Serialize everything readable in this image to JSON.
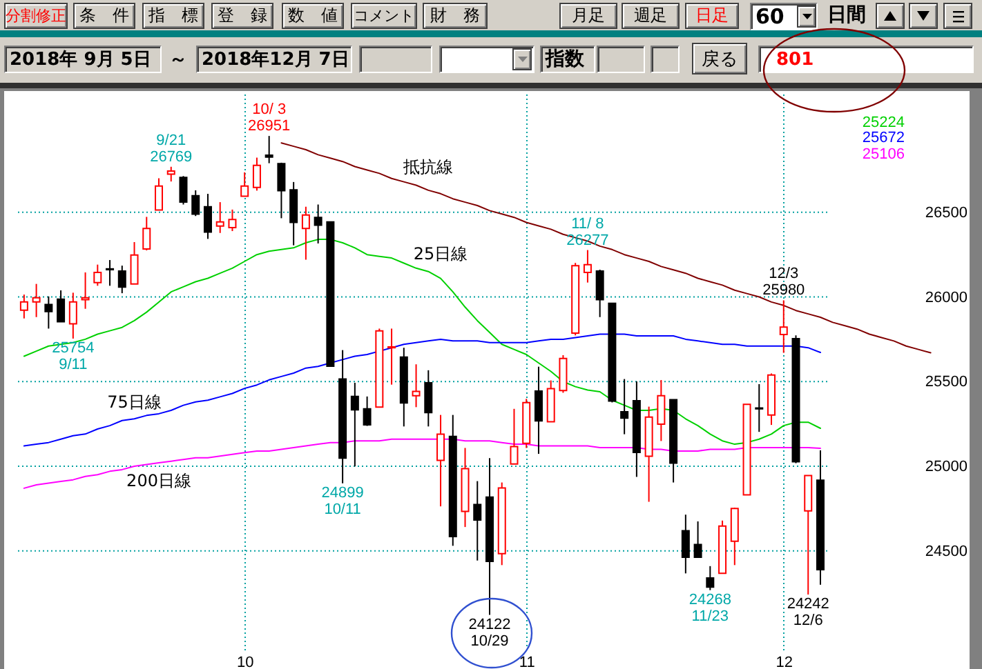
{
  "chart_data": {
    "type": "candlestick",
    "categories": [
      null,
      null,
      null,
      null,
      null,
      null,
      null,
      null,
      null,
      null,
      null,
      null,
      null,
      null,
      null,
      null,
      null,
      null,
      "10",
      null,
      null,
      null,
      null,
      null,
      null,
      null,
      null,
      null,
      null,
      null,
      null,
      null,
      null,
      null,
      null,
      null,
      null,
      null,
      null,
      null,
      null,
      "11",
      null,
      null,
      null,
      null,
      null,
      null,
      null,
      null,
      null,
      null,
      null,
      null,
      null,
      null,
      null,
      null,
      null,
      null,
      null,
      null,
      "12",
      null,
      null,
      null,
      null,
      null,
      null,
      null,
      null,
      null,
      null,
      null,
      null,
      null,
      null
    ],
    "ohlc": [
      [
        25922,
        26014,
        25873,
        25971
      ],
      [
        25971,
        26077,
        25881,
        25995
      ],
      [
        25955,
        26003,
        25813,
        25914
      ],
      [
        25987,
        26039,
        25854,
        25854
      ],
      [
        25841,
        26025,
        25754,
        25971
      ],
      [
        25984,
        26145,
        25930,
        25995
      ],
      [
        26085,
        26191,
        26066,
        26145
      ],
      [
        26166,
        26218,
        26066,
        26161
      ],
      [
        26153,
        26185,
        26022,
        26058
      ],
      [
        26077,
        26324,
        26077,
        26248
      ],
      [
        26283,
        26473,
        26275,
        26405
      ],
      [
        26514,
        26701,
        26514,
        26655
      ],
      [
        26725,
        26769,
        26682,
        26744
      ],
      [
        26706,
        26714,
        26546,
        26560
      ],
      [
        26598,
        26630,
        26478,
        26489
      ],
      [
        26533,
        26609,
        26343,
        26383
      ],
      [
        26419,
        26560,
        26378,
        26443
      ],
      [
        26410,
        26516,
        26389,
        26457
      ],
      [
        26595,
        26736,
        26595,
        26655
      ],
      [
        26647,
        26823,
        26628,
        26777
      ],
      [
        26837,
        26951,
        26790,
        26826
      ],
      [
        26788,
        26793,
        26465,
        26628
      ],
      [
        26633,
        26679,
        26305,
        26440
      ],
      [
        26405,
        26533,
        26220,
        26484
      ],
      [
        26470,
        26546,
        26316,
        26424
      ],
      [
        26443,
        26443,
        25591,
        25591
      ],
      [
        25515,
        25686,
        24899,
        25048
      ],
      [
        25412,
        25493,
        24999,
        25333
      ],
      [
        25339,
        25412,
        25238,
        25244
      ],
      [
        25349,
        25813,
        25349,
        25800
      ],
      [
        25700,
        25813,
        25482,
        25705
      ],
      [
        25645,
        25700,
        25235,
        25374
      ],
      [
        25417,
        25602,
        25349,
        25442
      ],
      [
        25493,
        25567,
        25235,
        25317
      ],
      [
        25035,
        25303,
        24763,
        25189
      ],
      [
        25176,
        25303,
        24530,
        24584
      ],
      [
        24733,
        25108,
        24641,
        24986
      ],
      [
        24774,
        24912,
        24443,
        24682
      ],
      [
        24818,
        25048,
        24122,
        24438
      ],
      [
        24484,
        24904,
        24416,
        24872
      ],
      [
        25013,
        25339,
        25013,
        25116
      ],
      [
        25135,
        25398,
        25108,
        25376
      ],
      [
        25444,
        25588,
        25073,
        25268
      ],
      [
        25263,
        25507,
        25263,
        25458
      ],
      [
        25447,
        25656,
        25434,
        25637
      ],
      [
        25786,
        26201,
        25773,
        26185
      ],
      [
        26145,
        26277,
        26085,
        26191
      ],
      [
        26153,
        26161,
        25881,
        25984
      ],
      [
        25963,
        25963,
        25377,
        25385
      ],
      [
        25322,
        25515,
        25189,
        25284
      ],
      [
        25387,
        25501,
        24937,
        25081
      ],
      [
        25059,
        25352,
        24790,
        25290
      ],
      [
        25249,
        25509,
        25149,
        25417
      ],
      [
        25393,
        25393,
        24904,
        25018
      ],
      [
        24619,
        24714,
        24367,
        24462
      ],
      [
        24538,
        24674,
        24462,
        24462
      ],
      [
        24340,
        24410,
        24268,
        24286
      ],
      [
        24367,
        24679,
        24367,
        24647
      ],
      [
        24557,
        24755,
        24416,
        24750
      ],
      [
        24831,
        25366,
        24831,
        25366
      ],
      [
        25344,
        25485,
        25203,
        25339
      ],
      [
        25303,
        25548,
        25244,
        25539
      ],
      [
        25778,
        25980,
        25670,
        25822
      ],
      [
        25754,
        25773,
        25018,
        25026
      ],
      [
        24736,
        24945,
        24242,
        24945
      ],
      [
        24918,
        25094,
        24300,
        24389
      ],
      null,
      null,
      null,
      null,
      null,
      null,
      null,
      null,
      null,
      null,
      null
    ],
    "colors": [
      "#ff0000",
      "#ff0000",
      "#000000",
      "#000000",
      "#ff0000",
      "#ff0000",
      "#ff0000",
      "#000000",
      "#000000",
      "#ff0000",
      "#ff0000",
      "#ff0000",
      "#ff0000",
      "#000000",
      "#000000",
      "#000000",
      "#ff0000",
      "#ff0000",
      "#ff0000",
      "#ff0000",
      "#000000",
      "#000000",
      "#000000",
      "#ff0000",
      "#000000",
      "#000000",
      "#000000",
      "#000000",
      "#000000",
      "#ff0000",
      "#ff0000",
      "#000000",
      "#ff0000",
      "#000000",
      "#ff0000",
      "#000000",
      "#ff0000",
      "#000000",
      "#000000",
      "#ff0000",
      "#ff0000",
      "#ff0000",
      "#000000",
      "#ff0000",
      "#ff0000",
      "#ff0000",
      "#ff0000",
      "#000000",
      "#000000",
      "#000000",
      "#000000",
      "#ff0000",
      "#ff0000",
      "#000000",
      "#000000",
      "#000000",
      "#000000",
      "#ff0000",
      "#ff0000",
      "#ff0000",
      "#000000",
      "#ff0000",
      "#ff0000",
      "#000000",
      "#ff0000",
      "#000000",
      null,
      null,
      null,
      null,
      null,
      null,
      null,
      null,
      null,
      null,
      null
    ],
    "series": [
      {
        "name": "25日線",
        "type": "line",
        "color": "#00d000",
        "values": [
          25650,
          25680,
          25710,
          25720,
          25730,
          25750,
          25780,
          25800,
          25820,
          25860,
          25910,
          25970,
          26030,
          26060,
          26090,
          26110,
          26140,
          26170,
          26210,
          26250,
          26270,
          26280,
          26290,
          26320,
          26340,
          26340,
          26320,
          26290,
          26250,
          26240,
          26230,
          26200,
          26170,
          26150,
          26110,
          26030,
          25940,
          25860,
          25790,
          25720,
          25690,
          25660,
          25610,
          25560,
          25500,
          25470,
          25450,
          25440,
          25390,
          25360,
          25330,
          25330,
          25340,
          25330,
          25280,
          25240,
          25190,
          25150,
          25130,
          25140,
          25160,
          25190,
          25240,
          25260,
          25260,
          25224,
          null,
          null,
          null,
          null,
          null,
          null,
          null,
          null,
          null,
          null,
          null
        ]
      },
      {
        "name": "75日線",
        "type": "line",
        "color": "#0000ff",
        "values": [
          25120,
          25130,
          25140,
          25160,
          25180,
          25190,
          25220,
          25240,
          25270,
          25280,
          25300,
          25310,
          25330,
          25360,
          25380,
          25390,
          25410,
          25430,
          25460,
          25480,
          25510,
          25530,
          25550,
          25580,
          25590,
          25610,
          25630,
          25650,
          25660,
          25680,
          25700,
          25720,
          25730,
          25740,
          25750,
          25740,
          25740,
          25740,
          25730,
          25730,
          25730,
          25730,
          25740,
          25750,
          25750,
          25760,
          25770,
          25780,
          25780,
          25780,
          25770,
          25770,
          25770,
          25770,
          25750,
          25740,
          25730,
          25720,
          25720,
          25710,
          25710,
          25710,
          25710,
          25710,
          25700,
          25672,
          null,
          null,
          null,
          null,
          null,
          null,
          null,
          null,
          null,
          null,
          null
        ]
      },
      {
        "name": "200日線",
        "type": "line",
        "color": "#ff00ff",
        "values": [
          24870,
          24890,
          24900,
          24910,
          24920,
          24940,
          24950,
          24970,
          24980,
          25000,
          25010,
          25020,
          25030,
          25040,
          25050,
          25050,
          25060,
          25070,
          25080,
          25090,
          25090,
          25100,
          25110,
          25120,
          25130,
          25140,
          25140,
          25150,
          25150,
          25150,
          25160,
          25160,
          25160,
          25160,
          25160,
          25160,
          25150,
          25150,
          25150,
          25140,
          25130,
          25130,
          25120,
          25120,
          25120,
          25120,
          25120,
          25110,
          25110,
          25110,
          25110,
          25100,
          25100,
          25090,
          25090,
          25090,
          25100,
          25100,
          25100,
          25110,
          25110,
          25110,
          25110,
          25110,
          25110,
          25106,
          null,
          null,
          null,
          null,
          null,
          null,
          null,
          null,
          null,
          null,
          null
        ]
      },
      {
        "name": "抵抗線",
        "type": "line",
        "color": "#800000",
        "values": [
          null,
          null,
          null,
          null,
          null,
          null,
          null,
          null,
          null,
          null,
          null,
          null,
          null,
          null,
          null,
          null,
          null,
          null,
          null,
          null,
          null,
          26910,
          26890,
          26870,
          26840,
          26820,
          26800,
          26770,
          26750,
          26730,
          26700,
          26680,
          26660,
          26630,
          26610,
          26580,
          26560,
          26540,
          26510,
          26490,
          26470,
          26440,
          26420,
          26400,
          26370,
          26350,
          26330,
          26300,
          26280,
          26250,
          26230,
          26210,
          26180,
          26160,
          26140,
          26110,
          26090,
          26070,
          26040,
          26020,
          26000,
          25970,
          25950,
          25920,
          25900,
          25880,
          25850,
          25830,
          25810,
          25780,
          25760,
          25740,
          25710,
          25690,
          25670,
          null,
          null
        ]
      }
    ],
    "ylim": [
      23900,
      27200
    ],
    "yticks": [
      24500,
      25000,
      25500,
      26000,
      26500
    ],
    "grid": true,
    "legend": false,
    "annotations": [
      {
        "text": "25754\n9/11",
        "y": 25754
      },
      {
        "text": "9/21\n26769",
        "y": 26769
      },
      {
        "text": "10/ 3\n26951",
        "y": 26951
      },
      {
        "text": "24899\n10/11",
        "y": 24899
      },
      {
        "text": "24122\n10/29",
        "y": 24122
      },
      {
        "text": "11/ 8\n26277",
        "y": 26277
      },
      {
        "text": "24268\n11/23",
        "y": 24268
      },
      {
        "text": "12/3\n25980",
        "y": 25980
      },
      {
        "text": "24242\n12/6",
        "y": 24242
      },
      "25224",
      "25672",
      "25106",
      "分割修正",
      "条　件",
      "指　標",
      "登　録",
      "数　値",
      "コメント",
      "財　務",
      "月足",
      "週足",
      "日足",
      "60",
      "日間",
      "2018年 9月 5日",
      "～",
      "2018年12月 7日",
      "指数",
      "戻る",
      "801"
    ]
  }
}
